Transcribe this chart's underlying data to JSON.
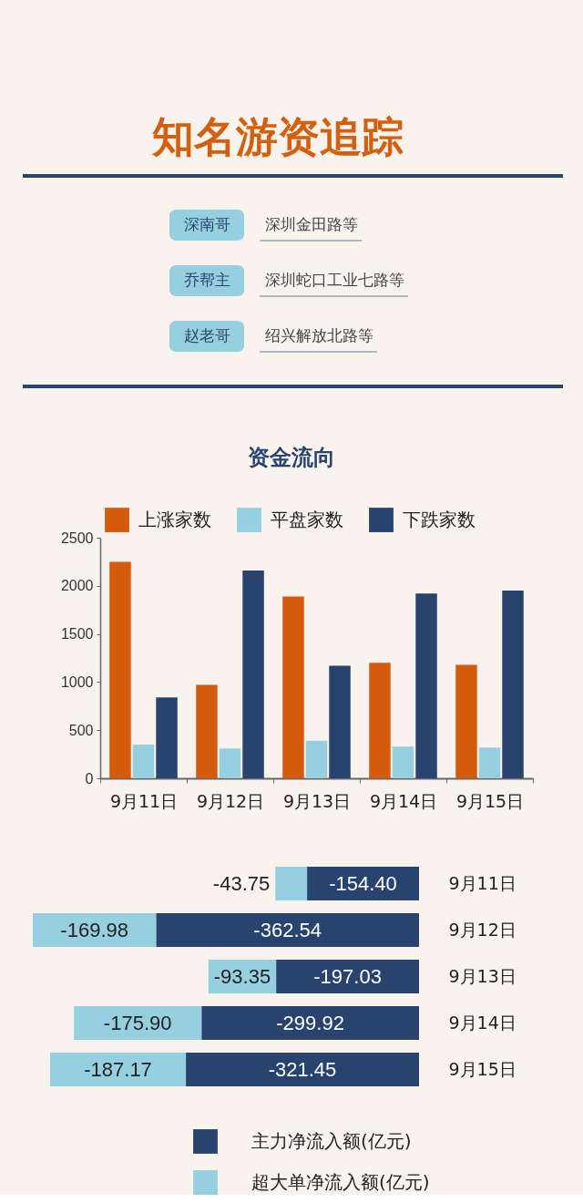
{
  "chart_data": [
    {
      "type": "other",
      "title": "知名游资追踪",
      "annotations": [
        "深南哥",
        "深圳金田路等",
        "乔帮主",
        "深圳蛇口工业七路等",
        "赵老哥",
        "绍兴解放北路等"
      ]
    },
    {
      "type": "bar",
      "title": "资金流向",
      "categories": [
        "9月11日",
        "9月12日",
        "9月13日",
        "9月14日",
        "9月15日"
      ],
      "series": [
        {
          "name": "上涨家数",
          "color": "#d45a0c",
          "values": [
            2250,
            970,
            1890,
            1200,
            1180
          ]
        },
        {
          "name": "平盘家数",
          "color": "#96cfe0",
          "values": [
            350,
            310,
            390,
            330,
            320
          ]
        },
        {
          "name": "下跌家数",
          "color": "#27436e",
          "values": [
            840,
            2160,
            1170,
            1920,
            1950
          ]
        }
      ],
      "ylim": [
        0,
        2500
      ],
      "yticks": [
        0,
        500,
        1000,
        1500,
        2000,
        2500
      ],
      "legend": "top"
    },
    {
      "type": "bar",
      "orientation": "horizontal",
      "stacked": true,
      "categories": [
        "9月11日",
        "9月12日",
        "9月13日",
        "9月14日",
        "9月15日"
      ],
      "series": [
        {
          "name": "主力净流入额(亿元)",
          "color": "#27436e",
          "values": [
            -154.4,
            -362.54,
            -197.03,
            -299.92,
            -321.45
          ],
          "value_labels": [
            "-154.40",
            "-362.54",
            "-197.03",
            "-299.92",
            "-321.45"
          ]
        },
        {
          "name": "超大单净流入额(亿元)",
          "color": "#96cfe0",
          "values": [
            -43.75,
            -169.98,
            -93.35,
            -175.9,
            -187.17
          ],
          "value_labels": [
            "-43.75",
            "-169.98",
            "-93.35",
            "-175.90",
            "-187.17"
          ]
        }
      ],
      "legend": "bottom"
    }
  ]
}
